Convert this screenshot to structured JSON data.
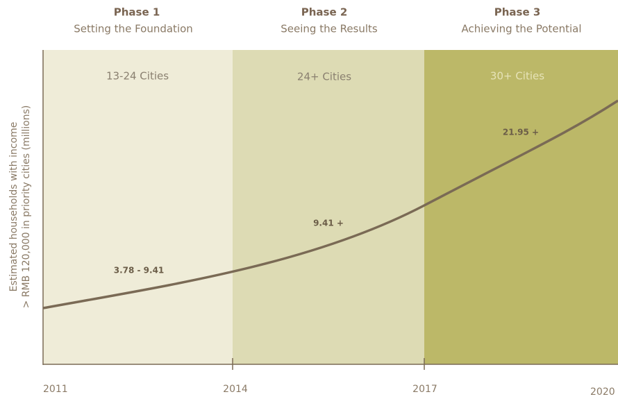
{
  "phases": [
    {
      "title": "Phase 1",
      "subtitle": "Setting the Foundation",
      "region": "13-24 Cities"
    },
    {
      "title": "Phase 2",
      "subtitle": "Seeing the Results",
      "region": "24+ Cities"
    },
    {
      "title": "Phase 3",
      "subtitle": "Achieving the Potential",
      "region": "30+ Cities"
    }
  ],
  "years": [
    "2011",
    "2014",
    "2017",
    "2020"
  ],
  "y_axis_label": [
    "Estimated  households with income",
    "> RMB 120,000 in priority cities (millions)"
  ],
  "annotations": [
    "3.78 - 9.41",
    "9.41 +",
    "21.95 +"
  ]
}
